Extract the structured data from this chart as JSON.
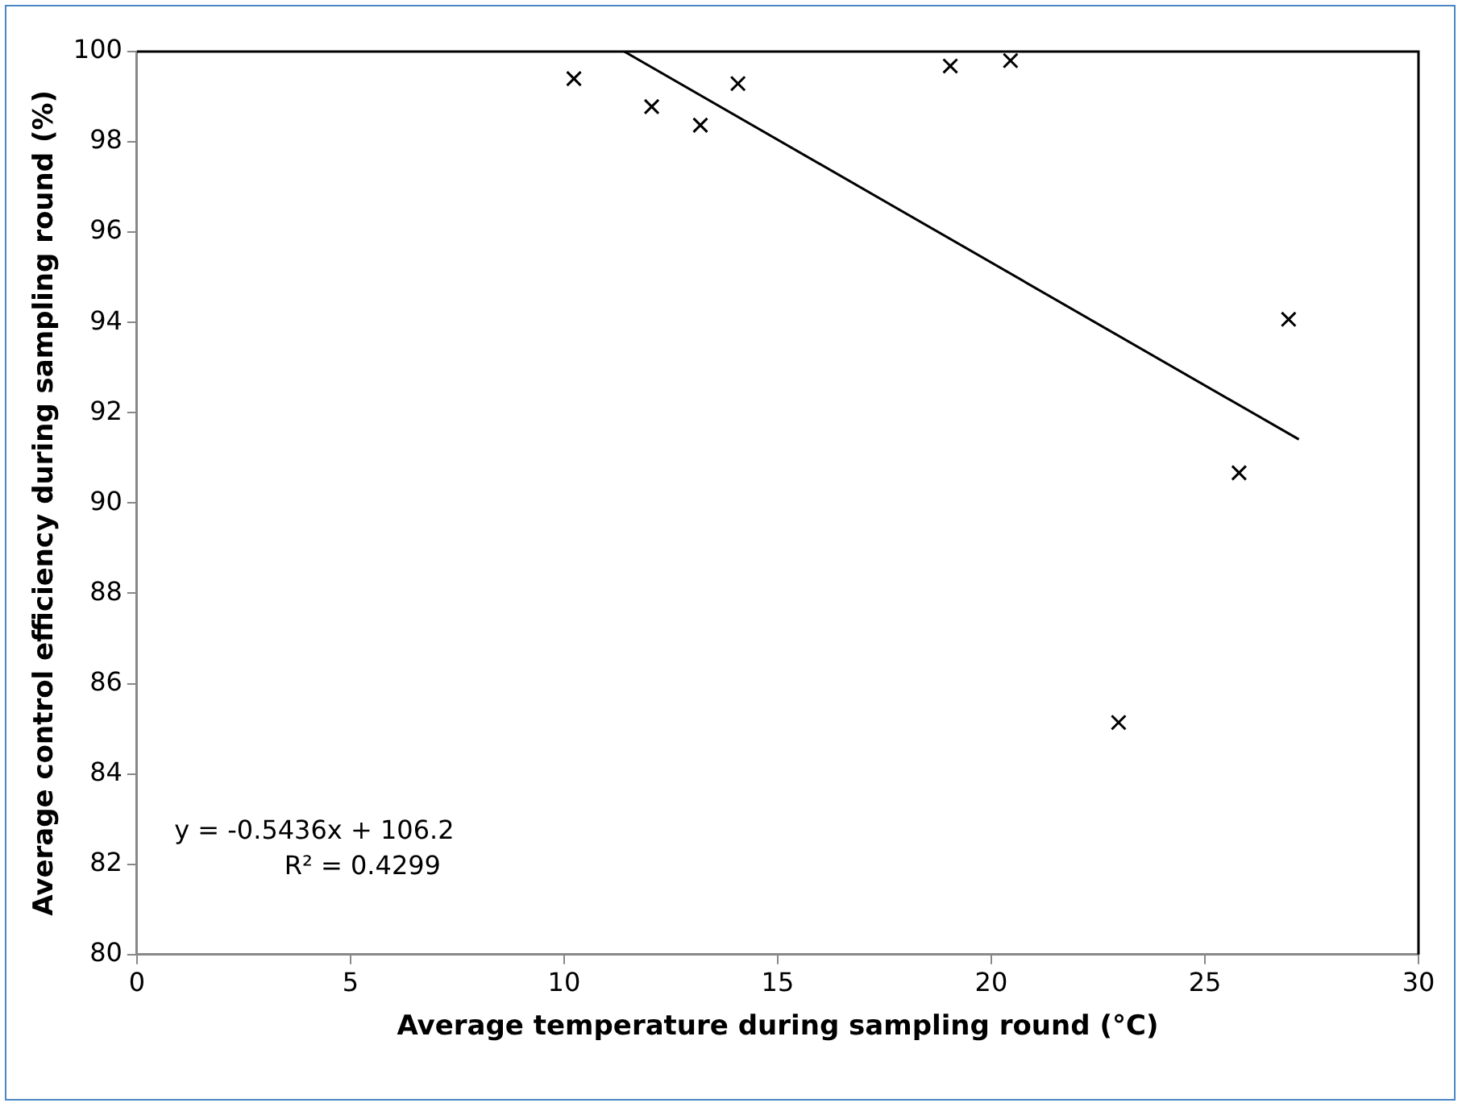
{
  "chart_data": {
    "type": "scatter",
    "xlabel": "Average temperature during sampling round (°C)",
    "ylabel": "Average control efficiency during sampling round (%)",
    "x": [
      10.23,
      12.05,
      13.19,
      14.07,
      19.04,
      20.45,
      22.98,
      25.8,
      26.96
    ],
    "series": [
      {
        "type": "scatter",
        "color": "#000000",
        "marker": "cross",
        "values": [
          99.4,
          98.78,
          98.37,
          99.29,
          99.68,
          99.8,
          85.14,
          90.67,
          94.07
        ]
      },
      {
        "type": "line",
        "color": "#000000",
        "marker": "none",
        "x": [
          11.41,
          27.2
        ],
        "values": [
          100,
          91.41
        ]
      }
    ],
    "xlim": [
      0,
      30
    ],
    "xticks": [
      0,
      5,
      10,
      15,
      20,
      25,
      30
    ],
    "ylim": [
      80,
      100
    ],
    "yticks": [
      80,
      82,
      84,
      86,
      88,
      90,
      92,
      94,
      96,
      98,
      100
    ],
    "grid": false,
    "legend": false,
    "annotations": [
      "y = -0.5436x + 106.2",
      "R² = 0.4299"
    ]
  }
}
